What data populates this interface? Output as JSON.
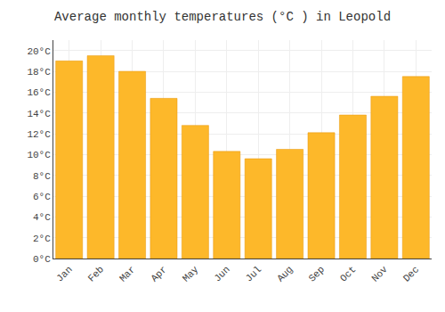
{
  "chart_data": {
    "type": "bar",
    "title": "Average monthly temperatures (°C ) in Leopold",
    "categories": [
      "Jan",
      "Feb",
      "Mar",
      "Apr",
      "May",
      "Jun",
      "Jul",
      "Aug",
      "Sep",
      "Oct",
      "Nov",
      "Dec"
    ],
    "values": [
      19.0,
      19.5,
      18.0,
      15.4,
      12.8,
      10.3,
      9.6,
      10.5,
      12.1,
      13.8,
      15.6,
      17.5
    ],
    "color": "#FDB82A",
    "ylim": [
      0,
      21
    ],
    "yticks": [
      {
        "value": 0,
        "label": "0°C"
      },
      {
        "value": 2,
        "label": "2°C"
      },
      {
        "value": 4,
        "label": "4°C"
      },
      {
        "value": 6,
        "label": "6°C"
      },
      {
        "value": 8,
        "label": "8°C"
      },
      {
        "value": 10,
        "label": "10°C"
      },
      {
        "value": 12,
        "label": "12°C"
      },
      {
        "value": 14,
        "label": "14°C"
      },
      {
        "value": 16,
        "label": "16°C"
      },
      {
        "value": 18,
        "label": "18°C"
      },
      {
        "value": 20,
        "label": "20°C"
      }
    ],
    "grid": true
  }
}
